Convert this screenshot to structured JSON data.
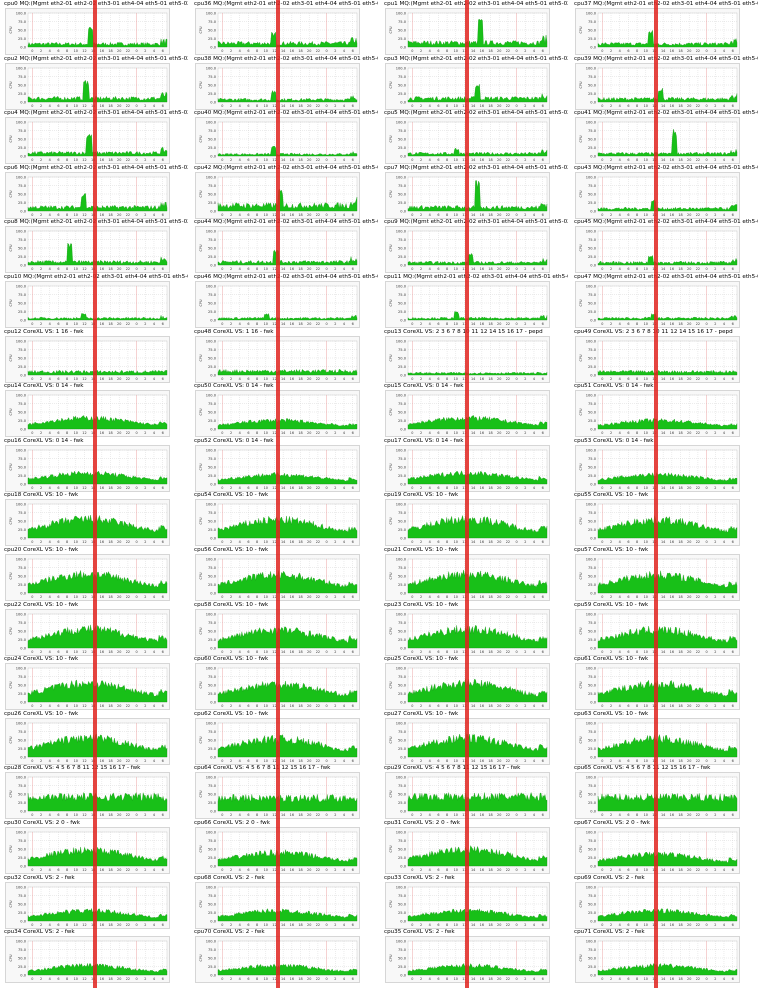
{
  "colors": {
    "fill": "#18c018",
    "stroke": "#0a8f0a",
    "marker": "#e0231f",
    "grid": "#d0d0d0",
    "vline": "#e89090"
  },
  "chart_data": {
    "type": "area",
    "y_ticks": [
      "100.0",
      "75.0",
      "50.0",
      "25.0",
      "0.0"
    ],
    "x_ticks": [
      "0",
      "2",
      "4",
      "6",
      "8",
      "10",
      "12",
      "14",
      "16",
      "18",
      "20",
      "22",
      "0",
      "2",
      "4",
      "6"
    ],
    "ylim": [
      0,
      100
    ],
    "panels": [
      {
        "title": "cpu0 MQ:(Mgmt eth2-01 eth2-02 eth3-01 eth4-04 eth5-01 eth5-02)",
        "ylabel": "CPU",
        "profile": "mq",
        "level": 10,
        "spike": [
          0.45,
          60
        ]
      },
      {
        "title": "cpu36 MQ:(Mgmt eth2-01 eth2-02 eth3-01 eth4-04 eth5-01 eth5-02)",
        "ylabel": "CPU",
        "profile": "mq",
        "level": 12,
        "spike": [
          0.4,
          45
        ]
      },
      {
        "title": "cpu1 MQ:(Mgmt eth2-01 eth2-02 eth3-01 eth4-04 eth5-01 eth5-02)",
        "ylabel": "CPU",
        "profile": "mq",
        "level": 14,
        "spike": [
          0.52,
          85
        ]
      },
      {
        "title": "cpu37 MQ:(Mgmt eth2-01 eth2-02 eth3-01 eth4-04 eth5-01 eth5-02)",
        "ylabel": "CPU",
        "profile": "mq",
        "level": 10,
        "spike": [
          0.38,
          50
        ]
      },
      {
        "title": "cpu2 MQ:(Mgmt eth2-01 eth2-02 eth3-01 eth4-04 eth5-01 eth5-02)",
        "ylabel": "CPU",
        "profile": "mq",
        "level": 12,
        "spike": [
          0.42,
          70
        ]
      },
      {
        "title": "cpu38 MQ:(Mgmt eth2-01 eth2-02 eth3-01 eth4-04 eth5-01 eth5-02)",
        "ylabel": "CPU",
        "profile": "mq",
        "level": 8,
        "spike": [
          0.4,
          35
        ]
      },
      {
        "title": "cpu3 MQ:(Mgmt eth2-01 eth2-02 eth3-01 eth4-04 eth5-01 eth5-02)",
        "ylabel": "CPU",
        "profile": "mq",
        "level": 12,
        "spike": [
          0.5,
          55
        ]
      },
      {
        "title": "cpu39 MQ:(Mgmt eth2-01 eth2-02 eth3-01 eth4-04 eth5-01 eth5-02)",
        "ylabel": "CPU",
        "profile": "mq",
        "level": 10,
        "spike": [
          0.45,
          45
        ]
      },
      {
        "title": "cpu4 MQ:(Mgmt eth2-01 eth2-02 eth3-01 eth4-04 eth5-01 eth5-02)",
        "ylabel": "CPU",
        "profile": "mq",
        "level": 10,
        "spike": [
          0.44,
          75
        ]
      },
      {
        "title": "cpu40 MQ:(Mgmt eth2-01 eth2-02 eth3-01 eth4-04 eth5-01 eth5-02)",
        "ylabel": "CPU",
        "profile": "mq",
        "level": 6,
        "spike": [
          0.4,
          30
        ]
      },
      {
        "title": "cpu5 MQ:(Mgmt eth2-01 eth2-02 eth3-01 eth4-04 eth5-01 eth5-02)",
        "ylabel": "CPU",
        "profile": "mq",
        "level": 8,
        "spike": [
          0.35,
          25
        ]
      },
      {
        "title": "cpu41 MQ:(Mgmt eth2-01 eth2-02 eth3-01 eth4-04 eth5-01 eth5-02)",
        "ylabel": "CPU",
        "profile": "mq",
        "level": 8,
        "spike": [
          0.55,
          80
        ]
      },
      {
        "title": "cpu6 MQ:(Mgmt eth2-01 eth2-02 eth3-01 eth4-04 eth5-01 eth5-02)",
        "ylabel": "CPU",
        "profile": "mq",
        "level": 12,
        "spike": [
          0.4,
          55
        ]
      },
      {
        "title": "cpu42 MQ:(Mgmt eth2-01 eth2-02 eth3-01 eth4-04 eth5-01 eth5-02)",
        "ylabel": "CPU",
        "profile": "mq",
        "level": 18,
        "spike": [
          0.45,
          65
        ]
      },
      {
        "title": "cpu7 MQ:(Mgmt eth2-01 eth2-02 eth3-01 eth4-04 eth5-01 eth5-02)",
        "ylabel": "CPU",
        "profile": "mq",
        "level": 12,
        "spike": [
          0.5,
          90
        ]
      },
      {
        "title": "cpu43 MQ:(Mgmt eth2-01 eth2-02 eth3-01 eth4-04 eth5-01 eth5-02)",
        "ylabel": "CPU",
        "profile": "mq",
        "level": 8,
        "spike": [
          0.4,
          35
        ]
      },
      {
        "title": "cpu8 MQ:(Mgmt eth2-01 eth2-02 eth3-01 eth4-04 eth5-01 eth5-02)",
        "ylabel": "CPU",
        "profile": "mq",
        "level": 10,
        "spike": [
          0.3,
          70
        ]
      },
      {
        "title": "cpu44 MQ:(Mgmt eth2-01 eth2-02 eth3-01 eth4-04 eth5-01 eth5-02)",
        "ylabel": "CPU",
        "profile": "mq",
        "level": 10,
        "spike": [
          0.42,
          50
        ]
      },
      {
        "title": "cpu9 MQ:(Mgmt eth2-01 eth2-02 eth3-01 eth4-04 eth5-01 eth5-02)",
        "ylabel": "CPU",
        "profile": "mq",
        "level": 8,
        "spike": [
          0.45,
          40
        ]
      },
      {
        "title": "cpu45 MQ:(Mgmt eth2-01 eth2-02 eth3-01 eth4-04 eth5-01 eth5-02)",
        "ylabel": "CPU",
        "profile": "mq",
        "level": 8,
        "spike": [
          0.38,
          30
        ]
      },
      {
        "title": "cpu10 MQ:(Mgmt eth2-01 eth2-02 eth3-01 eth4-04 eth5-01 eth5-02)",
        "ylabel": "CPU",
        "profile": "mq",
        "level": 6,
        "spike": [
          0.4,
          20
        ]
      },
      {
        "title": "cpu46 MQ:(Mgmt eth2-01 eth2-02 eth3-01 eth4-04 eth5-01 eth5-02)",
        "ylabel": "CPU",
        "profile": "mq",
        "level": 6,
        "spike": [
          0.35,
          20
        ]
      },
      {
        "title": "cpu11 MQ:(Mgmt eth2-01 eth2-02 eth3-01 eth4-04 eth5-01 eth5-02)",
        "ylabel": "CPU",
        "profile": "mq",
        "level": 6,
        "spike": [
          0.35,
          25
        ]
      },
      {
        "title": "cpu47 MQ:(Mgmt eth2-01 eth2-02 eth3-01 eth4-04 eth5-01 eth5-02)",
        "ylabel": "CPU",
        "profile": "mq",
        "level": 6,
        "spike": [
          0.4,
          20
        ]
      },
      {
        "title": "cpu12 CoreXL VS: 1 16 - fwk",
        "ylabel": "CPU",
        "profile": "flat",
        "level": 10
      },
      {
        "title": "cpu48 CoreXL VS: 1 16 - fwk",
        "ylabel": "CPU",
        "profile": "flat",
        "level": 12
      },
      {
        "title": "cpu13 CoreXL VS: 2 3 6 7 8 10 11 12 14 15 16 17 - pepd",
        "ylabel": "CPU",
        "profile": "flat",
        "level": 6
      },
      {
        "title": "cpu49 CoreXL VS: 2 3 6 7 8 10 11 12 14 15 16 17 - pepd",
        "ylabel": "CPU",
        "profile": "flat",
        "level": 10
      },
      {
        "title": "cpu14 CoreXL VS: 0 14 - fwk",
        "ylabel": "CPU",
        "profile": "hump",
        "level": 28
      },
      {
        "title": "cpu50 CoreXL VS: 0 14 - fwk",
        "ylabel": "CPU",
        "profile": "hump",
        "level": 22
      },
      {
        "title": "cpu15 CoreXL VS: 0 14 - fwk",
        "ylabel": "CPU",
        "profile": "hump",
        "level": 28
      },
      {
        "title": "cpu51 CoreXL VS: 0 14 - fwk",
        "ylabel": "CPU",
        "profile": "hump",
        "level": 22
      },
      {
        "title": "cpu16 CoreXL VS: 0 14 - fwk",
        "ylabel": "CPU",
        "profile": "hump",
        "level": 28
      },
      {
        "title": "cpu52 CoreXL VS: 0 14 - fwk",
        "ylabel": "CPU",
        "profile": "hump",
        "level": 24
      },
      {
        "title": "cpu17 CoreXL VS: 0 14 - fwk",
        "ylabel": "CPU",
        "profile": "hump",
        "level": 28
      },
      {
        "title": "cpu53 CoreXL VS: 0 14 - fwk",
        "ylabel": "CPU",
        "profile": "hump",
        "level": 24
      },
      {
        "title": "cpu18 CoreXL VS: 10 - fwk",
        "ylabel": "CPU",
        "profile": "hump",
        "level": 48
      },
      {
        "title": "cpu54 CoreXL VS: 10 - fwk",
        "ylabel": "CPU",
        "profile": "hump",
        "level": 46
      },
      {
        "title": "cpu19 CoreXL VS: 10 - fwk",
        "ylabel": "CPU",
        "profile": "hump",
        "level": 48
      },
      {
        "title": "cpu55 CoreXL VS: 10 - fwk",
        "ylabel": "CPU",
        "profile": "hump",
        "level": 46
      },
      {
        "title": "cpu20 CoreXL VS: 10 - fwk",
        "ylabel": "CPU",
        "profile": "hump",
        "level": 48
      },
      {
        "title": "cpu56 CoreXL VS: 10 - fwk",
        "ylabel": "CPU",
        "profile": "hump",
        "level": 46
      },
      {
        "title": "cpu21 CoreXL VS: 10 - fwk",
        "ylabel": "CPU",
        "profile": "hump",
        "level": 48
      },
      {
        "title": "cpu57 CoreXL VS: 10 - fwk",
        "ylabel": "CPU",
        "profile": "hump",
        "level": 46
      },
      {
        "title": "cpu22 CoreXL VS: 10 - fwk",
        "ylabel": "CPU",
        "profile": "hump",
        "level": 48
      },
      {
        "title": "cpu58 CoreXL VS: 10 - fwk",
        "ylabel": "CPU",
        "profile": "hump",
        "level": 46
      },
      {
        "title": "cpu23 CoreXL VS: 10 - fwk",
        "ylabel": "CPU",
        "profile": "hump",
        "level": 48
      },
      {
        "title": "cpu59 CoreXL VS: 10 - fwk",
        "ylabel": "CPU",
        "profile": "hump",
        "level": 46
      },
      {
        "title": "cpu24 CoreXL VS: 10 - fwk",
        "ylabel": "CPU",
        "profile": "hump",
        "level": 48
      },
      {
        "title": "cpu60 CoreXL VS: 10 - fwk",
        "ylabel": "CPU",
        "profile": "hump",
        "level": 46
      },
      {
        "title": "cpu25 CoreXL VS: 10 - fwk",
        "ylabel": "CPU",
        "profile": "hump",
        "level": 48
      },
      {
        "title": "cpu61 CoreXL VS: 10 - fwk",
        "ylabel": "CPU",
        "profile": "hump",
        "level": 46
      },
      {
        "title": "cpu26 CoreXL VS: 10 - fwk",
        "ylabel": "CPU",
        "profile": "hump",
        "level": 48
      },
      {
        "title": "cpu62 CoreXL VS: 10 - fwk",
        "ylabel": "CPU",
        "profile": "hump",
        "level": 46
      },
      {
        "title": "cpu27 CoreXL VS: 10 - fwk",
        "ylabel": "CPU",
        "profile": "hump",
        "level": 48
      },
      {
        "title": "cpu63 CoreXL VS: 10 - fwk",
        "ylabel": "CPU",
        "profile": "hump",
        "level": 46
      },
      {
        "title": "cpu28 CoreXL VS: 4 5 6 7 8 11 12 15 16 17 - fwk",
        "ylabel": "CPU",
        "profile": "dense",
        "level": 42
      },
      {
        "title": "cpu64 CoreXL VS: 4 5 6 7 8 11 12 15 16 17 - fwk",
        "ylabel": "CPU",
        "profile": "dense",
        "level": 38
      },
      {
        "title": "cpu29 CoreXL VS: 4 5 6 7 8 11 12 15 16 17 - fwk",
        "ylabel": "CPU",
        "profile": "dense",
        "level": 42
      },
      {
        "title": "cpu65 CoreXL VS: 4 5 6 7 8 11 12 15 16 17 - fwk",
        "ylabel": "CPU",
        "profile": "dense",
        "level": 40
      },
      {
        "title": "cpu30 CoreXL VS: 2 0 - fwk",
        "ylabel": "CPU",
        "profile": "hump",
        "level": 40
      },
      {
        "title": "cpu66 CoreXL VS: 2 0 - fwk",
        "ylabel": "CPU",
        "profile": "hump",
        "level": 34
      },
      {
        "title": "cpu31 CoreXL VS: 2 0 - fwk",
        "ylabel": "CPU",
        "profile": "hump",
        "level": 42
      },
      {
        "title": "cpu67 CoreXL VS: 2 0 - fwk",
        "ylabel": "CPU",
        "profile": "hump",
        "level": 30
      },
      {
        "title": "cpu32 CoreXL VS: 2 - fwk",
        "ylabel": "CPU",
        "profile": "hump",
        "level": 26
      },
      {
        "title": "cpu68 CoreXL VS: 2 - fwk",
        "ylabel": "CPU",
        "profile": "hump",
        "level": 26
      },
      {
        "title": "cpu33 CoreXL VS: 2 - fwk",
        "ylabel": "CPU",
        "profile": "hump",
        "level": 26
      },
      {
        "title": "cpu69 CoreXL VS: 2 - fwk",
        "ylabel": "CPU",
        "profile": "hump",
        "level": 26
      },
      {
        "title": "cpu34 CoreXL VS: 2 - fwk",
        "ylabel": "CPU",
        "profile": "hump",
        "level": 24
      },
      {
        "title": "cpu70 CoreXL VS: 2 - fwk",
        "ylabel": "CPU",
        "profile": "hump",
        "level": 24
      },
      {
        "title": "cpu35 CoreXL VS: 2 - fwk",
        "ylabel": "CPU",
        "profile": "hump",
        "level": 24
      },
      {
        "title": "cpu71 CoreXL VS: 2 - fwk",
        "ylabel": "CPU",
        "profile": "hump",
        "level": 24
      }
    ]
  }
}
